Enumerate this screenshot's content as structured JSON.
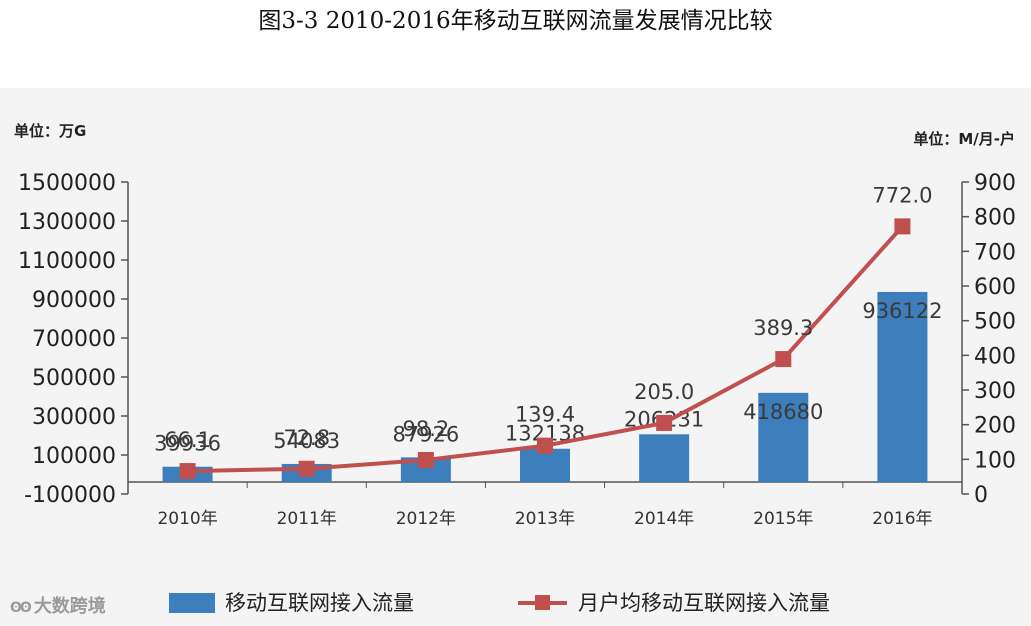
{
  "title": "图3-3 2010-2016年移动互联网流量发展情况比较",
  "watermark": {
    "icon": "wechat-logo-icon",
    "text": "大数跨境"
  },
  "chart_data": {
    "type": "bar",
    "categories": [
      "2010年",
      "2011年",
      "2012年",
      "2013年",
      "2014年",
      "2015年",
      "2016年"
    ],
    "series": [
      {
        "name": "移动互联网接入流量",
        "type": "bar",
        "axis": "left",
        "color": "#3d7ebd",
        "values": [
          39936,
          54083,
          87926,
          132138,
          206231,
          418680,
          936122
        ],
        "labels": [
          "39936",
          "54083",
          "87926",
          "132138",
          "206231",
          "418680",
          "936122"
        ]
      },
      {
        "name": "月户均移动互联网接入流量",
        "type": "line",
        "axis": "right",
        "color": "#c0504d",
        "marker": "square",
        "values": [
          66.1,
          72.8,
          98.2,
          139.4,
          205.0,
          389.3,
          772.0
        ],
        "labels": [
          "66.1",
          "72.8",
          "98.2",
          "139.4",
          "205.0",
          "389.3",
          "772.0"
        ]
      }
    ],
    "y_left": {
      "unit": "单位：万G",
      "range": [
        -100000,
        1500000
      ],
      "ticks": [
        "-100000",
        "100000",
        "300000",
        "500000",
        "700000",
        "900000",
        "1100000",
        "1300000",
        "1500000"
      ]
    },
    "y_right": {
      "unit": "单位：M/月-户",
      "range": [
        0,
        900
      ],
      "ticks": [
        "0",
        "100",
        "200",
        "300",
        "400",
        "500",
        "600",
        "700",
        "800",
        "900"
      ]
    },
    "grid": false,
    "legend": "bottom"
  }
}
